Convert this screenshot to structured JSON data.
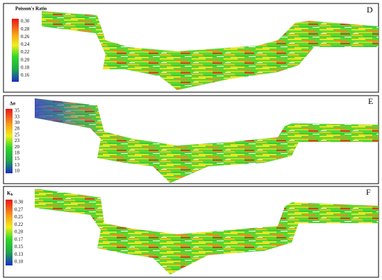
{
  "panels": [
    {
      "letter": "D",
      "legend_title": "Poisson's Ratio",
      "ticks": [
        "0.30",
        "0.28",
        "0.26",
        "0.24",
        "0.22",
        "0.20",
        "0.18",
        "0.16"
      ]
    },
    {
      "letter": "E",
      "legend_title": "Δσ",
      "ticks": [
        "35",
        "33",
        "30",
        "28",
        "25",
        "23",
        "20",
        "18",
        "15",
        "13",
        "10"
      ]
    },
    {
      "letter": "F",
      "legend_title": "K",
      "legend_title_sub": "h",
      "ticks": [
        "0.30",
        "0.27",
        "0.25",
        "0.22",
        "0.20",
        "0.17",
        "0.15",
        "0.13",
        "0.10"
      ]
    }
  ]
}
